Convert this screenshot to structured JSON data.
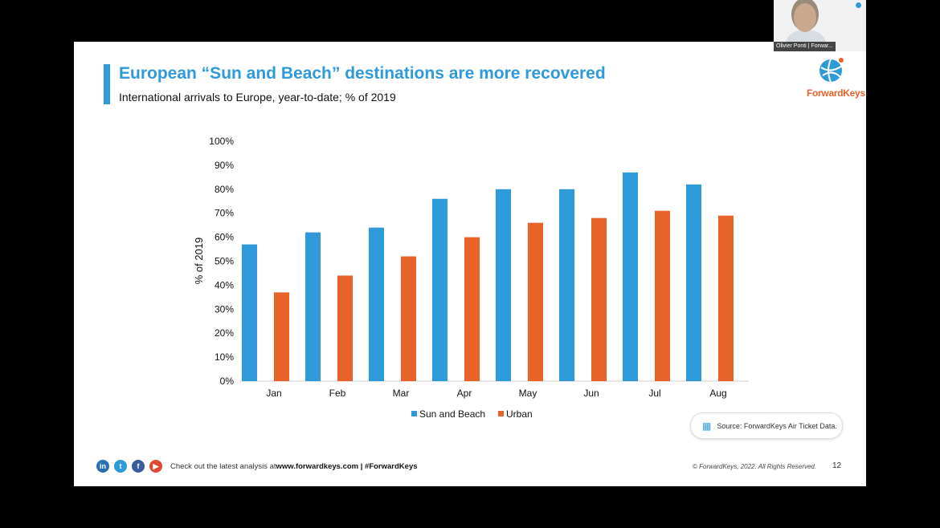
{
  "slide": {
    "title": "European “Sun and Beach” destinations are more recovered",
    "subtitle": "International arrivals to Europe, year-to-date; % of 2019",
    "logo_text": "ForwardKeys",
    "source": "Source: ForwardKeys Air Ticket Data.",
    "footer": {
      "social_icons": [
        "linkedin-icon",
        "twitter-icon",
        "facebook-icon",
        "youtube-icon"
      ],
      "text": "Check out the latest analysis at ",
      "link": "www.forwardkeys.com | #ForwardKeys",
      "copyright": "© ForwardKeys, 2022. All Rights Reserved.",
      "page_number": "12"
    }
  },
  "webcam": {
    "name": "Olivier Ponti | Forwar..."
  },
  "colors": {
    "accent": "#2e9ad9",
    "sun_and_beach": "#2e9ad9",
    "urban": "#e8622a"
  },
  "chart_data": {
    "type": "bar",
    "ylabel": "% of 2019",
    "xlabel": "",
    "ylim": [
      0,
      100
    ],
    "yticks": [
      "0%",
      "10%",
      "20%",
      "30%",
      "40%",
      "50%",
      "60%",
      "70%",
      "80%",
      "90%",
      "100%"
    ],
    "categories": [
      "Jan",
      "Feb",
      "Mar",
      "Apr",
      "May",
      "Jun",
      "Jul",
      "Aug"
    ],
    "series": [
      {
        "name": "Sun and Beach",
        "values": [
          57,
          62,
          64,
          76,
          80,
          80,
          87,
          82
        ]
      },
      {
        "name": "Urban",
        "values": [
          37,
          44,
          52,
          60,
          66,
          68,
          71,
          69
        ]
      }
    ],
    "grid": false,
    "legend": "bottom"
  }
}
